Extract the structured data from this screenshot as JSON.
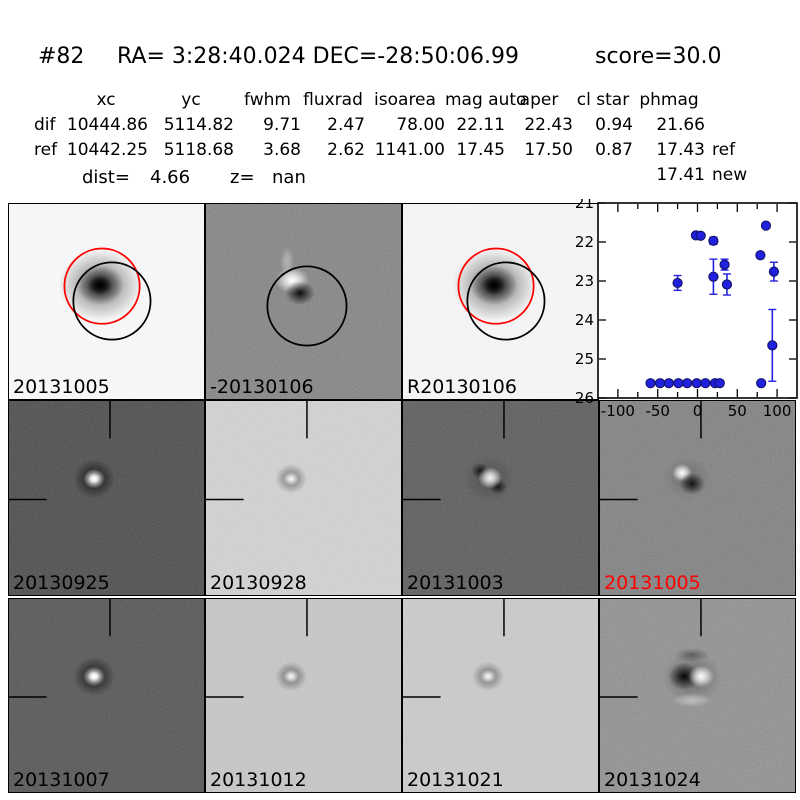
{
  "title": {
    "id": "#82",
    "coords": "RA= 3:28:40.024 DEC=-28:50:06.99",
    "score": "score=30.0"
  },
  "table": {
    "headers": [
      "xc",
      "yc",
      "fwhm",
      "fluxrad",
      "isoarea",
      "mag auto",
      "aper",
      "cl star",
      "phmag"
    ],
    "rows": [
      {
        "label": "dif",
        "values": [
          "10444.86",
          "5114.82",
          "9.71",
          "2.47",
          "78.00",
          "22.11",
          "22.43",
          "0.94",
          "21.66"
        ],
        "suffix": ""
      },
      {
        "label": "ref",
        "values": [
          "10442.25",
          "5118.68",
          "3.68",
          "2.62",
          "1141.00",
          "17.45",
          "17.50",
          "0.87",
          "17.43"
        ],
        "suffix": "ref"
      },
      {
        "label": "",
        "values": [
          "",
          "",
          "",
          "",
          "",
          "",
          "",
          "",
          "17.41"
        ],
        "suffix": "new"
      }
    ],
    "dist_label": "dist=",
    "dist_value": "4.66",
    "z_label": "z=",
    "z_value": "nan"
  },
  "panels": [
    {
      "label": "20131005",
      "type": "new",
      "bg": "#fbfbfb",
      "label_color": "#000000"
    },
    {
      "label": "-20130106",
      "type": "sub",
      "bg": "#7e7e7e",
      "label_color": "#000000"
    },
    {
      "label": "R20130106",
      "type": "new",
      "bg": "#f8f8f8",
      "label_color": "#000000"
    },
    {
      "label": "",
      "type": "lightcurve",
      "bg": "#ffffff",
      "label_color": "#000000"
    },
    {
      "label": "20130925",
      "type": "spot-bright",
      "bg": "#3c3c3c",
      "label_color": "#000000"
    },
    {
      "label": "20130928",
      "type": "spot-dark",
      "bg": "#d5d5d5",
      "label_color": "#000000"
    },
    {
      "label": "20131003",
      "type": "spot-mixed",
      "bg": "#4e4e4e",
      "label_color": "#000000"
    },
    {
      "label": "20131005",
      "type": "dipole-small",
      "bg": "#7a7a7a",
      "label_color": "#ff0000"
    },
    {
      "label": "20131007",
      "type": "spot-bright",
      "bg": "#464646",
      "label_color": "#000000"
    },
    {
      "label": "20131012",
      "type": "spot-dark",
      "bg": "#c9c9c9",
      "label_color": "#000000"
    },
    {
      "label": "20131021",
      "type": "spot-dark",
      "bg": "#cdcdcd",
      "label_color": "#000000"
    },
    {
      "label": "20131024",
      "type": "dipole-big",
      "bg": "#8c8c8c",
      "label_color": "#000000"
    }
  ],
  "colors": {
    "aperture_ref_circle": "#ff0000",
    "aperture_target_circle": "#000000",
    "highlight_label": "#ff0000",
    "marker": "#2020dd",
    "errorbar": "#2222e0"
  },
  "chart_data": {
    "type": "scatter",
    "title": "",
    "xlabel": "",
    "ylabel": "",
    "xlim": [
      -125,
      125
    ],
    "ylim": [
      26,
      21
    ],
    "xticks": [
      -100,
      -50,
      0,
      50,
      100
    ],
    "xticks_minor_step": 25,
    "yticks": [
      21,
      22,
      23,
      24,
      25,
      26
    ],
    "grid": false,
    "legend": false,
    "series": [
      {
        "name": "photometry",
        "marker": "circle",
        "color": "#2020dd",
        "points": [
          {
            "x": -59,
            "y": 25.62,
            "err": 0.07
          },
          {
            "x": -47,
            "y": 25.62,
            "err": 0.07
          },
          {
            "x": -36,
            "y": 25.62,
            "err": 0.07
          },
          {
            "x": -24,
            "y": 25.62,
            "err": 0.07
          },
          {
            "x": -13,
            "y": 25.62,
            "err": 0.07
          },
          {
            "x": -1,
            "y": 25.62,
            "err": 0.07
          },
          {
            "x": 10,
            "y": 25.62,
            "err": 0.07
          },
          {
            "x": 22,
            "y": 25.62,
            "err": 0.07
          },
          {
            "x": 28,
            "y": 25.62,
            "err": 0.07
          },
          {
            "x": 80,
            "y": 25.62,
            "err": 0.07
          },
          {
            "x": -25,
            "y": 23.05,
            "err": 0.19
          },
          {
            "x": -2,
            "y": 21.83,
            "err": 0.06
          },
          {
            "x": 4,
            "y": 21.84,
            "err": 0.06
          },
          {
            "x": 20,
            "y": 21.97,
            "err": 0.09
          },
          {
            "x": 20,
            "y": 22.89,
            "err": 0.45
          },
          {
            "x": 34,
            "y": 22.58,
            "err": 0.14
          },
          {
            "x": 37,
            "y": 23.09,
            "err": 0.27
          },
          {
            "x": 79,
            "y": 22.34,
            "err": 0.07
          },
          {
            "x": 86,
            "y": 21.58,
            "err": 0.06
          },
          {
            "x": 94,
            "y": 24.65,
            "err": 0.92
          },
          {
            "x": 96,
            "y": 22.76,
            "err": 0.24
          }
        ]
      }
    ]
  }
}
